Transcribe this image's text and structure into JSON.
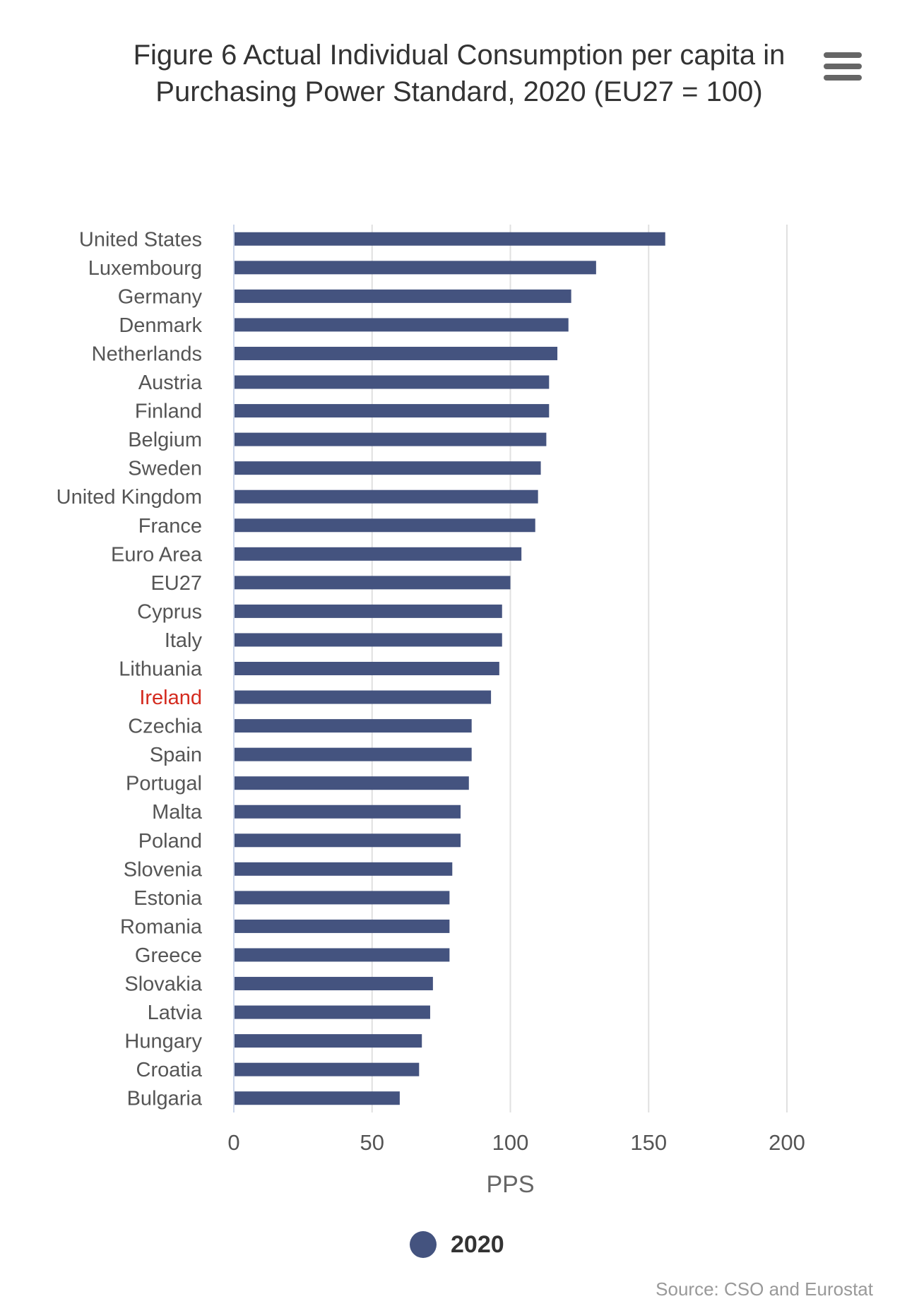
{
  "title": "Figure 6 Actual Individual Consumption per capita in Purchasing Power Standard, 2020 (EU27 = 100)",
  "menu_icon": "hamburger-menu-icon",
  "source": "Source: CSO and Eurostat",
  "colors": {
    "bar": "#44537f",
    "highlight_label": "#d42a1e",
    "label": "#555555",
    "grid": "#e0e0e0"
  },
  "chart_data": {
    "type": "bar",
    "orientation": "horizontal",
    "categories": [
      "United States",
      "Luxembourg",
      "Germany",
      "Denmark",
      "Netherlands",
      "Austria",
      "Finland",
      "Belgium",
      "Sweden",
      "United Kingdom",
      "France",
      "Euro Area",
      "EU27",
      "Cyprus",
      "Italy",
      "Lithuania",
      "Ireland",
      "Czechia",
      "Spain",
      "Portugal",
      "Malta",
      "Poland",
      "Slovenia",
      "Estonia",
      "Romania",
      "Greece",
      "Slovakia",
      "Latvia",
      "Hungary",
      "Croatia",
      "Bulgaria"
    ],
    "highlight_category": "Ireland",
    "series": [
      {
        "name": "2020",
        "values": [
          156,
          131,
          122,
          121,
          117,
          114,
          114,
          113,
          111,
          110,
          109,
          104,
          100,
          97,
          97,
          96,
          93,
          86,
          86,
          85,
          82,
          82,
          79,
          78,
          78,
          78,
          72,
          71,
          68,
          67,
          60
        ]
      }
    ],
    "xlabel": "PPS",
    "xlim": [
      0,
      200
    ],
    "xticks": [
      0,
      50,
      100,
      150,
      200
    ],
    "grid": "vertical",
    "legend_position": "bottom-center"
  },
  "legend": {
    "label": "2020"
  }
}
